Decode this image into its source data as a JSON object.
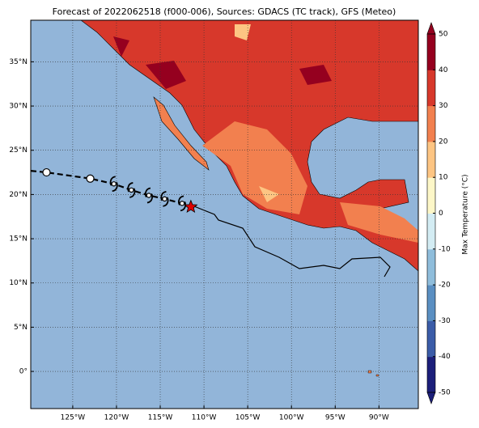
{
  "title": "Forecast of 2022062518 (f000-006), Sources: GDACS (TC track), GFS (Meteo)",
  "map": {
    "xlim": [
      -129.8,
      -85.5
    ],
    "ylim": [
      -4.2,
      39.7
    ],
    "xticks": [
      {
        "value": -125,
        "label": "125°W"
      },
      {
        "value": -120,
        "label": "120°W"
      },
      {
        "value": -115,
        "label": "115°W"
      },
      {
        "value": -110,
        "label": "110°W"
      },
      {
        "value": -105,
        "label": "105°W"
      },
      {
        "value": -100,
        "label": "100°W"
      },
      {
        "value": -95,
        "label": "95°W"
      },
      {
        "value": -90,
        "label": "90°W"
      }
    ],
    "yticks": [
      {
        "value": 35,
        "label": "35°N"
      },
      {
        "value": 30,
        "label": "30°N"
      },
      {
        "value": 25,
        "label": "25°N"
      },
      {
        "value": 20,
        "label": "20°N"
      },
      {
        "value": 15,
        "label": "15°N"
      },
      {
        "value": 10,
        "label": "10°N"
      },
      {
        "value": 5,
        "label": "5°N"
      },
      {
        "value": 0,
        "label": "0°"
      }
    ],
    "grid": true,
    "track": {
      "lon": [
        -128.0,
        -123.0,
        -120.3,
        -118.3,
        -116.3,
        -114.5,
        -112.5,
        -111.5
      ],
      "lat": [
        22.5,
        21.8,
        21.2,
        20.5,
        19.9,
        19.5,
        19.0,
        18.6
      ],
      "markers": [
        "circle",
        "circle",
        "cyclone",
        "cyclone",
        "cyclone",
        "cyclone",
        "cyclone",
        "star"
      ]
    }
  },
  "colorbar": {
    "label": "Max Temperature (°C)",
    "lim": [
      -50,
      50
    ],
    "ticks": [
      50,
      40,
      30,
      20,
      10,
      0,
      -10,
      -20,
      -30,
      -40,
      -50
    ],
    "colors": [
      "#1c1f7a",
      "#3b5ca8",
      "#5a8fc2",
      "#8fbddb",
      "#d3ecf3",
      "#fdf7c8",
      "#fdc583",
      "#f2804f",
      "#d7382b",
      "#95001f"
    ]
  }
}
